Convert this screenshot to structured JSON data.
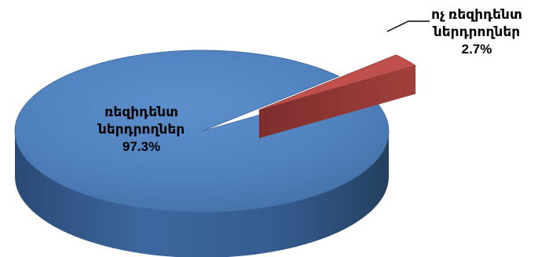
{
  "chart_data": {
    "type": "pie",
    "title": "",
    "slices": [
      {
        "label_line1": "ռեզիդենտ",
        "label_line2": "ներդրողներ",
        "value": 97.3,
        "value_label": "97.3%",
        "color": "#4f81bd"
      },
      {
        "label_line1": "ոչ ռեզիդենտ",
        "label_line2": "ներդրողներ",
        "value": 2.7,
        "value_label": "2.7%",
        "color": "#c0504d"
      }
    ],
    "style": "3d",
    "exploded_slice": "ոչ ռեզիդենտ ներդրողներ",
    "legend": "none"
  }
}
